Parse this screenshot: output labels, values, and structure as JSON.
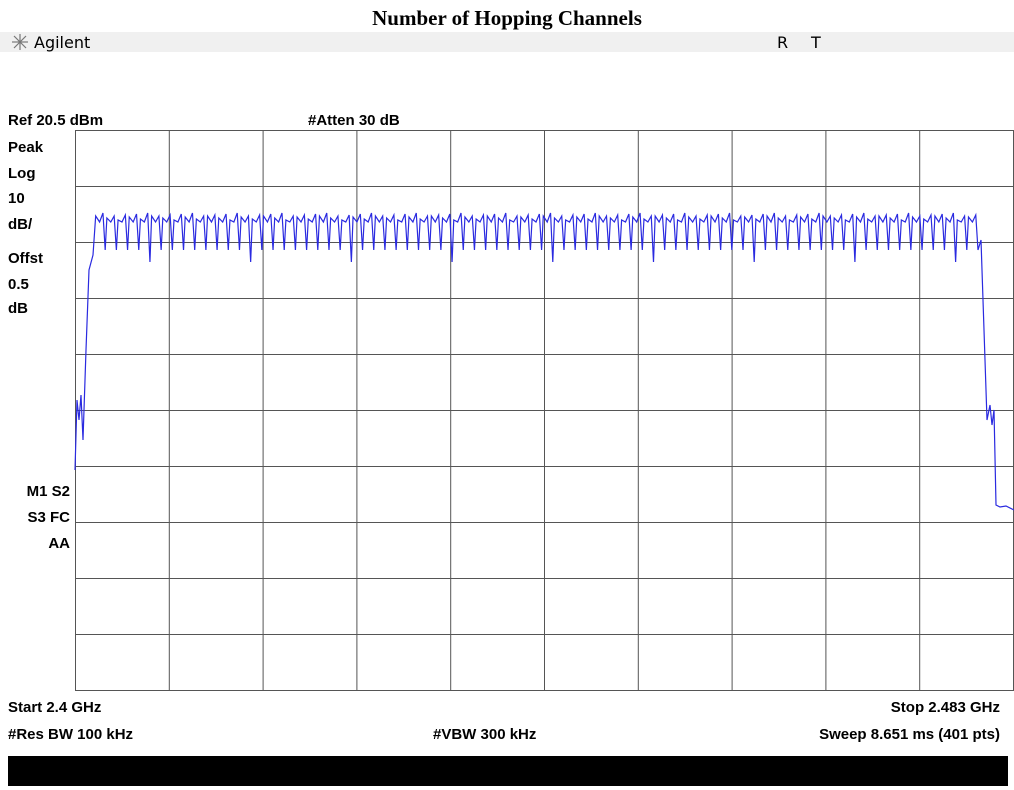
{
  "title": "Number of Hopping Channels",
  "header": {
    "logo": "Agilent",
    "indicators": [
      "R",
      "T"
    ]
  },
  "settings": {
    "ref": "Ref 20.5 dBm",
    "atten": "#Atten 30 dB"
  },
  "left_labels": [
    "Peak",
    "Log",
    "10",
    "dB/",
    "Offst",
    "0.5",
    "dB"
  ],
  "markers": [
    "M1  S2",
    "S3  FC",
    "AA"
  ],
  "footer": {
    "start": "Start 2.4 GHz",
    "stop": "Stop 2.483 GHz",
    "res_bw": "#Res BW 100 kHz",
    "vbw": "#VBW 300 kHz",
    "sweep": "Sweep 8.651 ms (401 pts)"
  }
}
